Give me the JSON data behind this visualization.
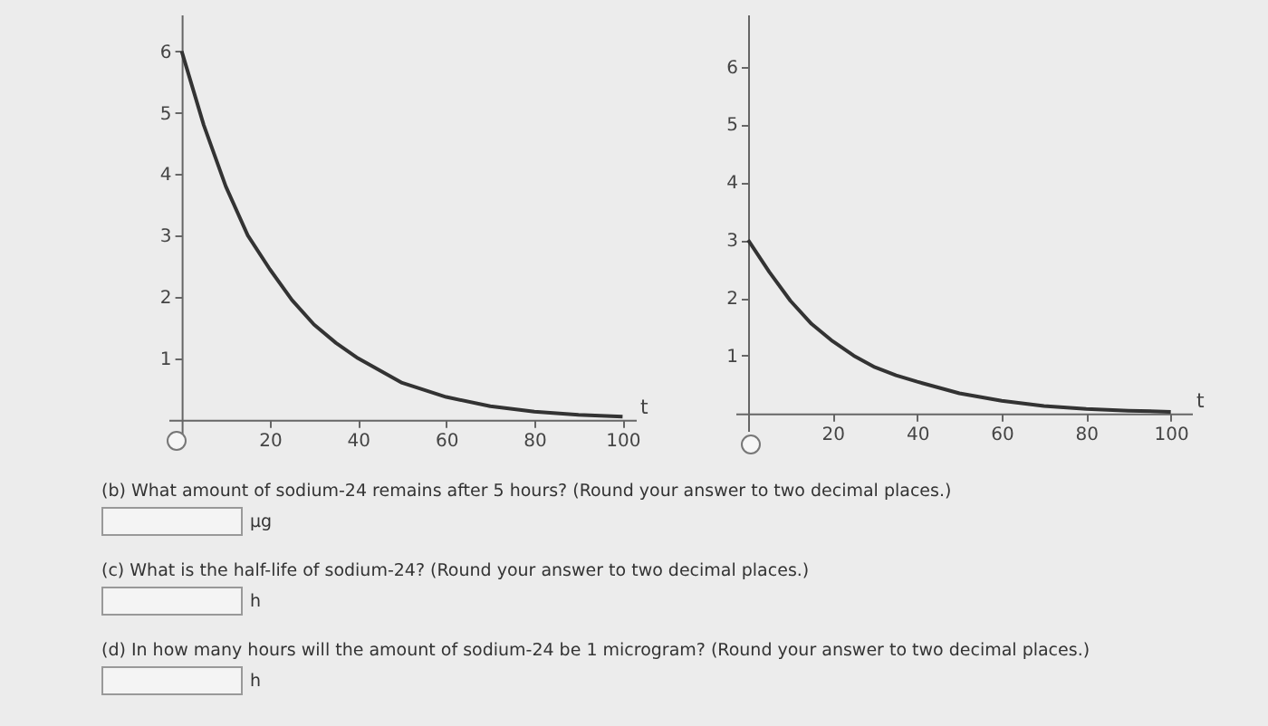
{
  "chart_data": [
    {
      "type": "line",
      "xlabel": "t",
      "x": [
        0,
        5,
        10,
        15,
        20,
        25,
        30,
        35,
        40,
        50,
        60,
        70,
        80,
        90,
        100
      ],
      "series": [
        {
          "color": "#333333",
          "values": [
            6,
            4.8,
            3.8,
            3.0,
            2.45,
            1.95,
            1.55,
            1.25,
            1.0,
            0.6,
            0.37,
            0.22,
            0.13,
            0.08,
            0.05
          ]
        }
      ],
      "xlim": [
        -3,
        103
      ],
      "ylim": [
        -0.3,
        6.6
      ],
      "xticks": [
        20,
        40,
        60,
        80,
        100
      ],
      "yticks": [
        1,
        2,
        3,
        4,
        5,
        6
      ],
      "grid": false,
      "annotations": [
        "(b) What amount of sodium-24 remains after 5 hours? (Round your answer to two decimal places.)",
        "μg",
        "(c) What is the half-life of sodium-24? (Round your answer to two decimal places.)",
        "h",
        "(d) In how many hours will the amount of sodium-24 be 1 microgram? (Round your answer to two decimal places.)",
        "h"
      ]
    },
    {
      "type": "line",
      "xlabel": "t",
      "x": [
        0,
        5,
        10,
        15,
        20,
        25,
        30,
        35,
        40,
        50,
        60,
        70,
        80,
        90,
        100
      ],
      "series": [
        {
          "color": "#333333",
          "values": [
            3,
            2.45,
            1.95,
            1.55,
            1.25,
            1.0,
            0.8,
            0.66,
            0.55,
            0.35,
            0.22,
            0.13,
            0.08,
            0.05,
            0.03
          ]
        }
      ],
      "xlim": [
        -3,
        105
      ],
      "ylim": [
        -0.3,
        6.9
      ],
      "xticks": [
        20,
        40,
        60,
        80,
        100
      ],
      "yticks": [
        1,
        2,
        3,
        4,
        5,
        6
      ],
      "grid": false
    }
  ]
}
